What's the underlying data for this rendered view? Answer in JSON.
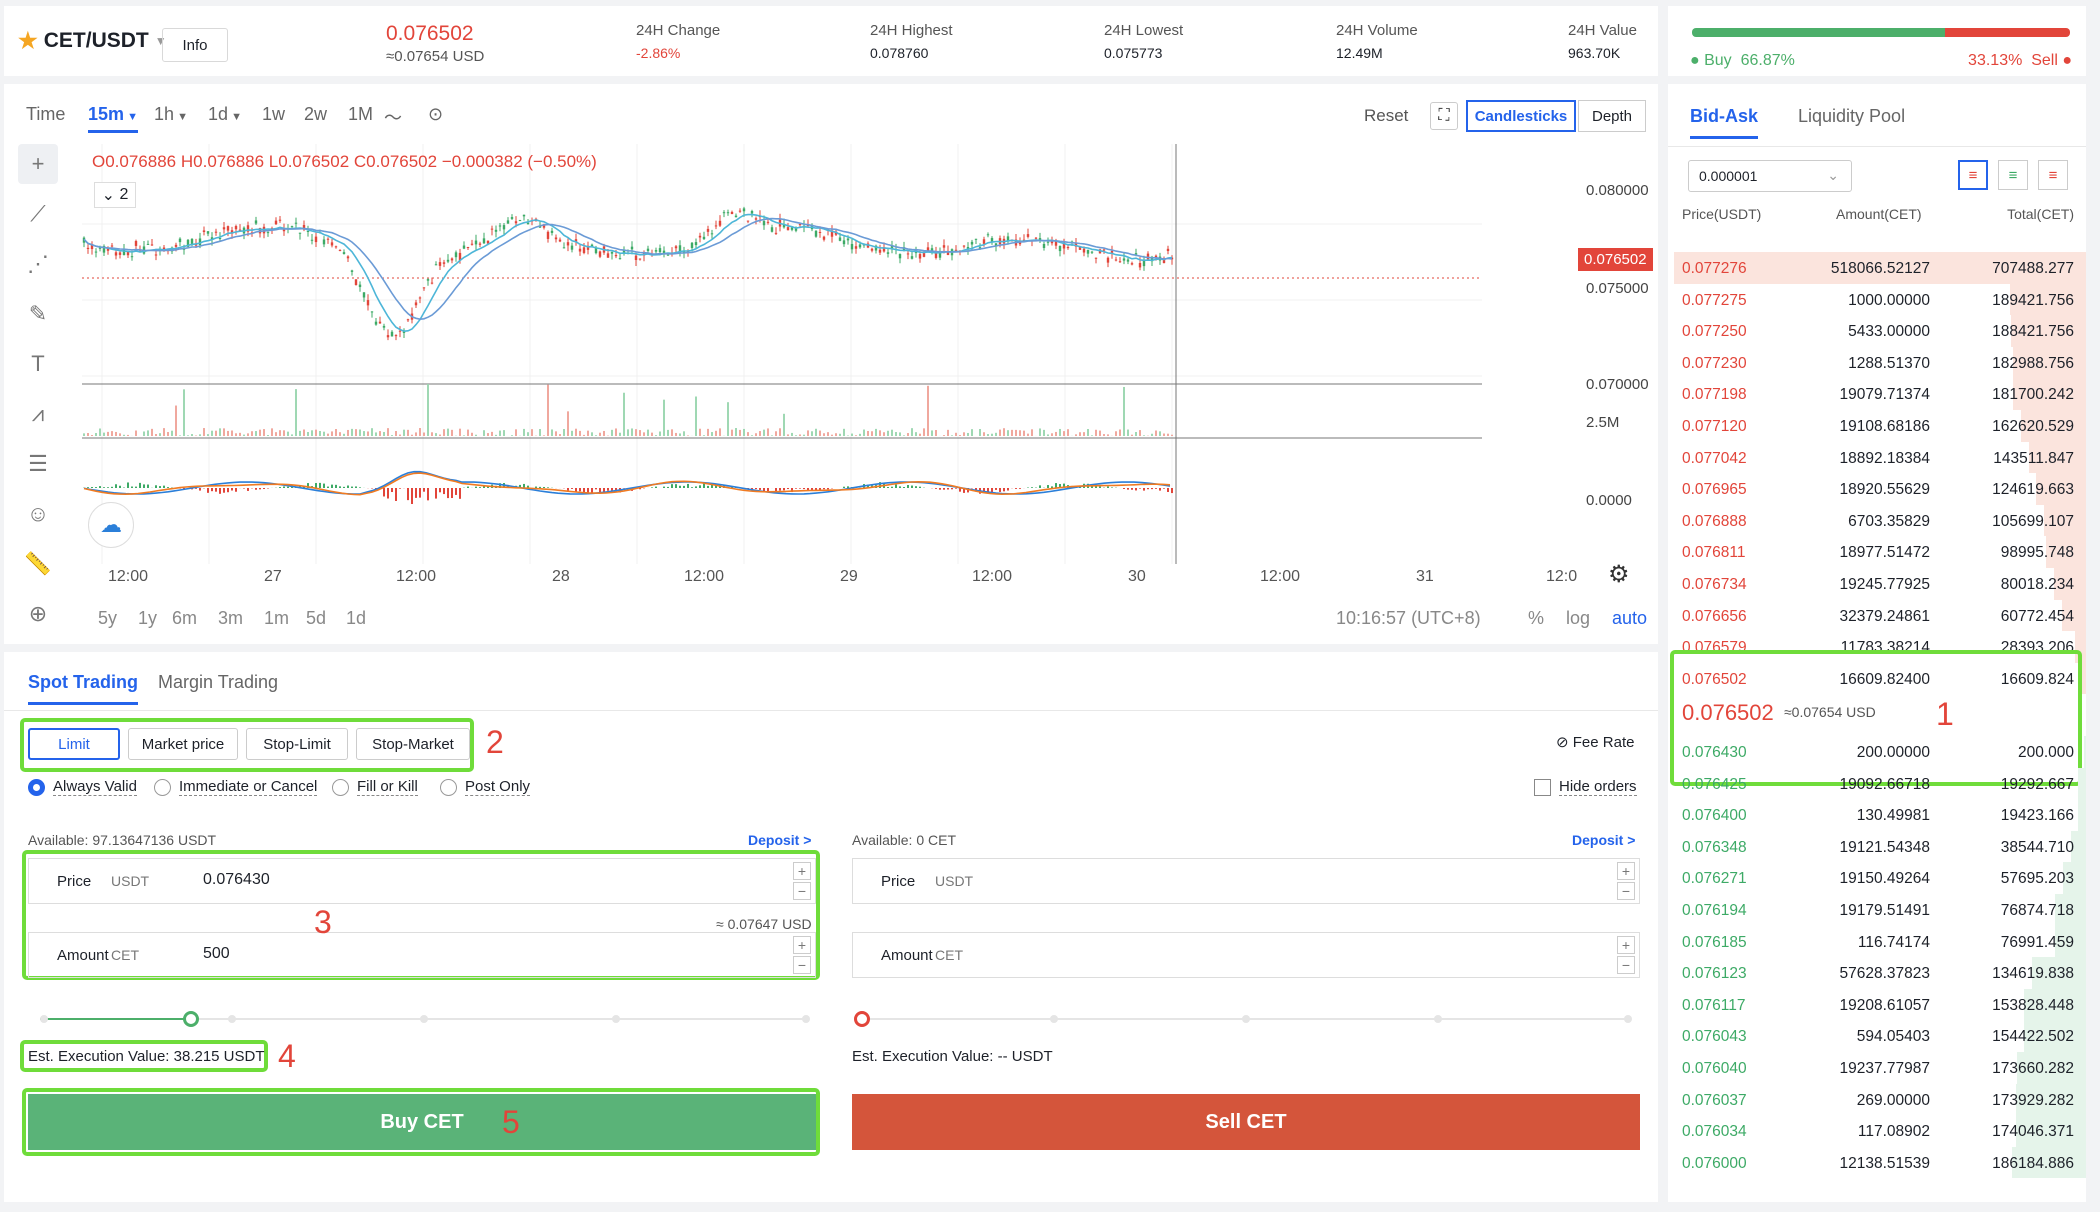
{
  "header": {
    "pair": "CET/USDT",
    "info_label": "Info",
    "last_price": "0.076502",
    "last_price_usd": "≈0.07654 USD",
    "stats": [
      {
        "label": "24H Change",
        "value": "-2.86%"
      },
      {
        "label": "24H Highest",
        "value": "0.078760"
      },
      {
        "label": "24H Lowest",
        "value": "0.075773"
      },
      {
        "label": "24H Volume",
        "value": "12.49M"
      },
      {
        "label": "24H Value",
        "value": "963.70K"
      }
    ],
    "buy_ratio_label": "Buy",
    "buy_ratio": "66.87%",
    "sell_ratio": "33.13%",
    "sell_ratio_label": "Sell",
    "buy_ratio_value": 0.6687
  },
  "chart": {
    "timeframes": [
      "Time",
      "15m",
      "1h",
      "1d",
      "1w",
      "2w",
      "1M"
    ],
    "active_timeframe": "15m",
    "reset_label": "Reset",
    "view_candlesticks": "Candlesticks",
    "view_depth": "Depth",
    "ohlc": {
      "open": "O0.076886",
      "high": "H0.076886",
      "low": "L0.076502",
      "close": "C0.076502",
      "change": "−0.000382 (−0.50%)"
    },
    "indicator_count": "2",
    "price_axis": [
      "0.080000",
      "0.075000",
      "0.070000"
    ],
    "current_price_tag": "0.076502",
    "volume_axis": "2.5M",
    "macd_axis": "0.0000",
    "time_axis": [
      "12:00",
      "27",
      "12:00",
      "28",
      "12:00",
      "29",
      "12:00",
      "30",
      "12:00",
      "31",
      "12:0"
    ],
    "ranges": [
      "5y",
      "1y",
      "6m",
      "3m",
      "1m",
      "5d",
      "1d"
    ],
    "clock": "10:16:57 (UTC+8)",
    "scale_options": [
      "%",
      "log",
      "auto"
    ],
    "active_scale": "auto"
  },
  "trading": {
    "tabs": [
      "Spot Trading",
      "Margin Trading"
    ],
    "active_tab": "Spot Trading",
    "order_types": [
      "Limit",
      "Market price",
      "Stop-Limit",
      "Stop-Market"
    ],
    "active_order_type": "Limit",
    "fee_rate": "Fee Rate",
    "tif": [
      "Always Valid",
      "Immediate or Cancel",
      "Fill or Kill",
      "Post Only"
    ],
    "active_tif": "Always Valid",
    "hide_orders": "Hide orders",
    "buy": {
      "available": "Available: 97.13647136 USDT",
      "deposit": "Deposit >",
      "price_label": "Price",
      "price_unit": "USDT",
      "price_value": "0.076430",
      "approx": "≈ 0.07647 USD",
      "amount_label": "Amount",
      "amount_unit": "CET",
      "amount_value": "500",
      "slider_value": 0.16,
      "est_value": "Est. Execution Value: 38.215 USDT",
      "button": "Buy CET"
    },
    "sell": {
      "available": "Available: 0 CET",
      "deposit": "Deposit >",
      "price_label": "Price",
      "price_unit": "USDT",
      "amount_label": "Amount",
      "amount_unit": "CET",
      "slider_value": 0,
      "est_value": "Est. Execution Value: -- USDT",
      "button": "Sell CET"
    }
  },
  "orderbook": {
    "tabs": [
      "Bid-Ask",
      "Liquidity Pool"
    ],
    "active_tab": "Bid-Ask",
    "precision": "0.000001",
    "headers": [
      "Price(USDT)",
      "Amount(CET)",
      "Total(CET)"
    ],
    "asks": [
      [
        "0.077276",
        "518066.52127",
        "707488.277"
      ],
      [
        "0.077275",
        "1000.00000",
        "189421.756"
      ],
      [
        "0.077250",
        "5433.00000",
        "188421.756"
      ],
      [
        "0.077230",
        "1288.51370",
        "182988.756"
      ],
      [
        "0.077198",
        "19079.71374",
        "181700.242"
      ],
      [
        "0.077120",
        "19108.68186",
        "162620.529"
      ],
      [
        "0.077042",
        "18892.18384",
        "143511.847"
      ],
      [
        "0.076965",
        "18920.55629",
        "124619.663"
      ],
      [
        "0.076888",
        "6703.35829",
        "105699.107"
      ],
      [
        "0.076811",
        "18977.51472",
        "98995.748"
      ],
      [
        "0.076734",
        "19245.77925",
        "80018.234"
      ],
      [
        "0.076656",
        "32379.24861",
        "60772.454"
      ],
      [
        "0.076579",
        "11783.38214",
        "28393.206"
      ],
      [
        "0.076502",
        "16609.82400",
        "16609.824"
      ]
    ],
    "mid_price": "0.076502",
    "mid_usd": "≈0.07654 USD",
    "bids": [
      [
        "0.076430",
        "200.00000",
        "200.000"
      ],
      [
        "0.076425",
        "19092.66718",
        "19292.667"
      ],
      [
        "0.076400",
        "130.49981",
        "19423.166"
      ],
      [
        "0.076348",
        "19121.54348",
        "38544.710"
      ],
      [
        "0.076271",
        "19150.49264",
        "57695.203"
      ],
      [
        "0.076194",
        "19179.51491",
        "76874.718"
      ],
      [
        "0.076185",
        "116.74174",
        "76991.459"
      ],
      [
        "0.076123",
        "57628.37823",
        "134619.838"
      ],
      [
        "0.076117",
        "19208.61057",
        "153828.448"
      ],
      [
        "0.076043",
        "594.05403",
        "154422.502"
      ],
      [
        "0.076040",
        "19237.77987",
        "173660.282"
      ],
      [
        "0.076037",
        "269.00000",
        "173929.282"
      ],
      [
        "0.076034",
        "117.08902",
        "174046.371"
      ],
      [
        "0.076000",
        "12138.51539",
        "186184.886"
      ]
    ]
  },
  "annotations": [
    "1",
    "2",
    "3",
    "4",
    "5"
  ]
}
